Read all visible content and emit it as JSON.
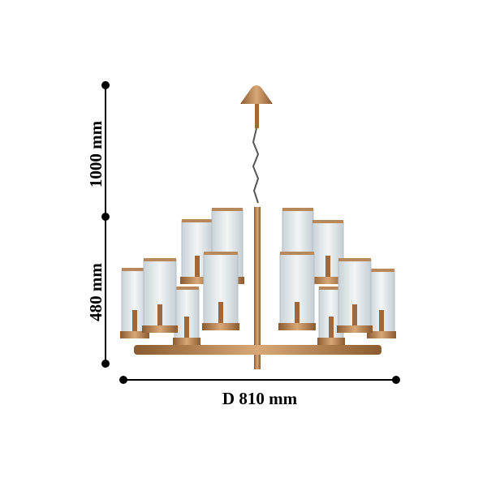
{
  "dimensions": {
    "height_total": "1000 mm",
    "height_body": "480 mm",
    "diameter": "D 810 mm"
  },
  "colors": {
    "brass": "#b07a48",
    "brass_light": "#d9a877",
    "glass": "#dfe6ea",
    "line": "#000000"
  }
}
